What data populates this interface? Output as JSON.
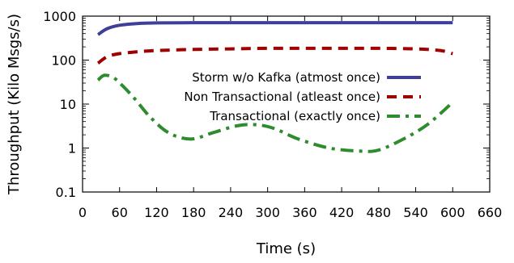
{
  "chart_data": {
    "type": "line",
    "xlabel": "Time (s)",
    "ylabel": "Throughput (Kilo Msgs/s)",
    "xlim": [
      0,
      660
    ],
    "ylim": [
      0.1,
      1000
    ],
    "yscale": "log",
    "xticks": [
      0,
      60,
      120,
      180,
      240,
      300,
      360,
      420,
      480,
      540,
      600,
      660
    ],
    "xtick_labels": [
      "0",
      "60",
      "120",
      "180",
      "240",
      "300",
      "360",
      "420",
      "480",
      "540",
      "600",
      "660"
    ],
    "yticks": [
      0.1,
      1,
      10,
      100,
      1000
    ],
    "ytick_labels": [
      "0.1",
      "1",
      "10",
      "100",
      "1000"
    ],
    "legend_position": "center-right",
    "series": [
      {
        "name": "Storm w/o Kafka (atmost once)",
        "color": "#3f3f99",
        "style": "solid",
        "x": [
          25,
          40,
          60,
          90,
          120,
          180,
          240,
          300,
          360,
          420,
          480,
          540,
          600
        ],
        "y": [
          380,
          520,
          620,
          680,
          700,
          710,
          710,
          710,
          710,
          710,
          710,
          710,
          710
        ]
      },
      {
        "name": "Non Transactional (atleast once)",
        "color": "#a00000",
        "style": "dashed",
        "x": [
          25,
          40,
          60,
          90,
          120,
          180,
          240,
          300,
          360,
          420,
          480,
          540,
          580,
          600
        ],
        "y": [
          85,
          120,
          140,
          155,
          165,
          175,
          180,
          185,
          185,
          185,
          185,
          180,
          165,
          140
        ]
      },
      {
        "name": "Transactional (exactly once)",
        "color": "#2e8b2e",
        "style": "dash-dot",
        "x": [
          25,
          35,
          50,
          65,
          85,
          110,
          140,
          175,
          210,
          250,
          280,
          310,
          350,
          400,
          450,
          480,
          520,
          560,
          600
        ],
        "y": [
          35,
          45,
          40,
          26,
          13,
          5,
          2.2,
          1.6,
          2.2,
          3.2,
          3.4,
          2.8,
          1.6,
          1.0,
          0.85,
          0.9,
          1.6,
          3.5,
          11
        ]
      }
    ]
  }
}
